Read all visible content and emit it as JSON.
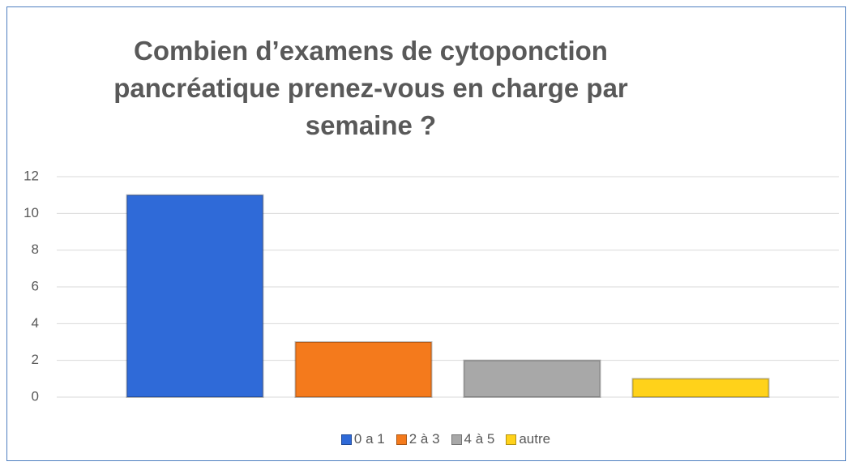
{
  "chart_data": {
    "type": "bar",
    "title": "Combien d’examens de cytoponction pancréatique prenez-vous en charge par semaine ?",
    "categories": [
      null
    ],
    "series": [
      {
        "name": "0 a 1",
        "color": "#2f6ad8",
        "values": [
          11
        ]
      },
      {
        "name": "2 à 3",
        "color": "#f47a1c",
        "values": [
          3
        ]
      },
      {
        "name": "4 à 5",
        "color": "#a8a8a8",
        "values": [
          2
        ]
      },
      {
        "name": "autre",
        "color": "#ffd21a",
        "values": [
          1
        ]
      }
    ],
    "ylim": [
      0,
      12
    ],
    "yticks": [
      0,
      2,
      4,
      6,
      8,
      10,
      12
    ],
    "grid": true,
    "legend": "bottom"
  }
}
